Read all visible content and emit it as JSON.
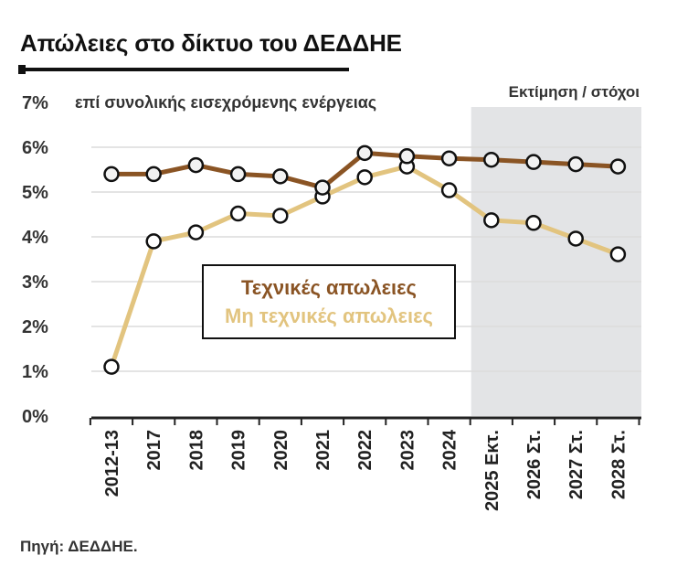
{
  "header": {
    "title": "Απώλειες στο δίκτυο του ΔΕΔΔΗΕ"
  },
  "footer": {
    "source": "Πηγή: ΔΕΔΔΗΕ."
  },
  "colors": {
    "technical": "#8a5424",
    "non_technical": "#e2c47f",
    "shade": "#e3e4e6",
    "grid": "#dcdcdc"
  },
  "chart_data": {
    "type": "line",
    "title": "Απώλειες στο δίκτυο του ΔΕΔΔΗΕ",
    "ylabel": "επί συνολικής εισεχρόμενης ενέργειας",
    "ylim": [
      0,
      7
    ],
    "yticks": [
      "0%",
      "1%",
      "2%",
      "3%",
      "4%",
      "5%",
      "6%",
      "7%"
    ],
    "grid": true,
    "categories": [
      "2012-13",
      "2017",
      "2018",
      "2019",
      "2020",
      "2021",
      "2022",
      "2023",
      "2024",
      "2025 Εκτ.",
      "2026 Στ.",
      "2027 Στ.",
      "2028 Στ."
    ],
    "shaded_region": {
      "label": "Εκτίμηση / στόχοι",
      "from_category": "2025 Εκτ.",
      "to_category": "2028 Στ."
    },
    "legend_position": "center",
    "series": [
      {
        "name": "Τεχνικές απωλειες",
        "color": "#8a5424",
        "marker_fill": "#f2f2f2",
        "values": [
          5.4,
          5.4,
          5.6,
          5.4,
          5.35,
          5.1,
          5.87,
          5.8,
          5.75,
          5.72,
          5.67,
          5.62,
          5.57
        ]
      },
      {
        "name": "Μη τεχνικές απωλειες",
        "color": "#e2c47f",
        "marker_fill": "#ffffff",
        "values": [
          1.1,
          3.9,
          4.1,
          4.52,
          4.47,
          4.9,
          5.33,
          5.57,
          5.04,
          4.37,
          4.31,
          3.96,
          3.61
        ]
      }
    ]
  }
}
